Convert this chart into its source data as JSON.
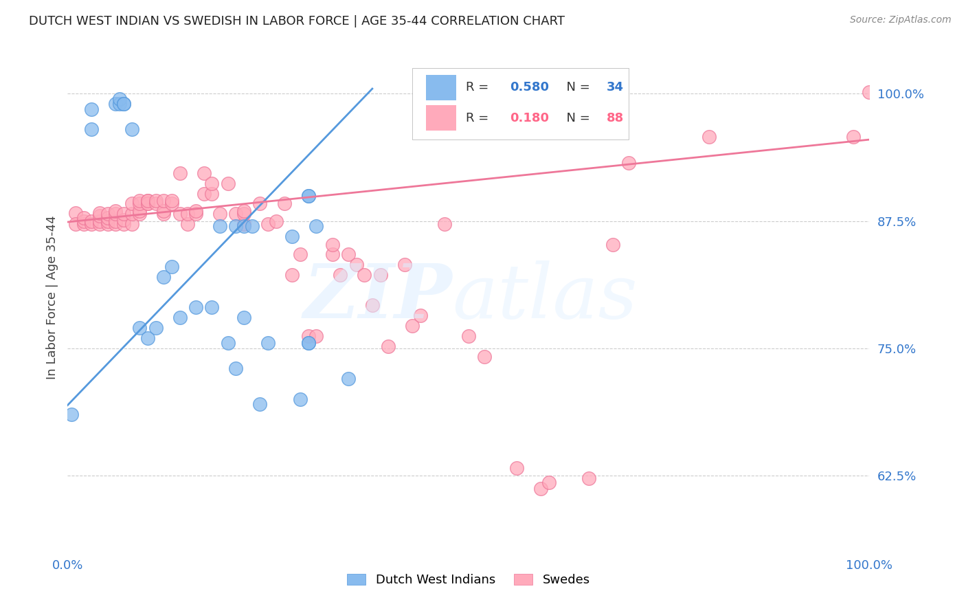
{
  "title": "DUTCH WEST INDIAN VS SWEDISH IN LABOR FORCE | AGE 35-44 CORRELATION CHART",
  "source": "Source: ZipAtlas.com",
  "ylabel": "In Labor Force | Age 35-44",
  "xlim": [
    0.0,
    1.0
  ],
  "ylim": [
    0.55,
    1.05
  ],
  "yticks": [
    0.625,
    0.75,
    0.875,
    1.0
  ],
  "ytick_labels": [
    "62.5%",
    "75.0%",
    "87.5%",
    "100.0%"
  ],
  "legend_R1": "0.580",
  "legend_N1": "34",
  "legend_R2": "0.180",
  "legend_N2": "88",
  "color_blue": "#88BBEE",
  "color_pink": "#FFAABB",
  "color_blue_text": "#3377CC",
  "color_pink_text": "#FF6688",
  "color_blue_line": "#5599DD",
  "color_pink_line": "#EE7799",
  "blue_x": [
    0.005,
    0.03,
    0.03,
    0.06,
    0.065,
    0.065,
    0.07,
    0.07,
    0.08,
    0.09,
    0.1,
    0.11,
    0.12,
    0.13,
    0.14,
    0.16,
    0.18,
    0.19,
    0.21,
    0.21,
    0.22,
    0.24,
    0.28,
    0.3,
    0.3,
    0.31,
    0.35,
    0.2,
    0.22,
    0.23,
    0.25,
    0.29,
    0.3,
    0.3
  ],
  "blue_y": [
    0.685,
    0.965,
    0.985,
    0.99,
    0.99,
    0.995,
    0.99,
    0.99,
    0.965,
    0.77,
    0.76,
    0.77,
    0.82,
    0.83,
    0.78,
    0.79,
    0.79,
    0.87,
    0.87,
    0.73,
    0.78,
    0.695,
    0.86,
    0.755,
    0.755,
    0.87,
    0.72,
    0.755,
    0.87,
    0.87,
    0.755,
    0.7,
    0.9,
    0.9
  ],
  "pink_x": [
    0.01,
    0.01,
    0.02,
    0.02,
    0.02,
    0.03,
    0.03,
    0.04,
    0.04,
    0.04,
    0.04,
    0.05,
    0.05,
    0.05,
    0.05,
    0.06,
    0.06,
    0.06,
    0.06,
    0.07,
    0.07,
    0.07,
    0.08,
    0.08,
    0.08,
    0.09,
    0.09,
    0.09,
    0.09,
    0.1,
    0.1,
    0.1,
    0.1,
    0.11,
    0.11,
    0.12,
    0.12,
    0.12,
    0.13,
    0.13,
    0.14,
    0.14,
    0.15,
    0.15,
    0.16,
    0.16,
    0.17,
    0.17,
    0.18,
    0.18,
    0.19,
    0.2,
    0.21,
    0.22,
    0.22,
    0.22,
    0.24,
    0.25,
    0.26,
    0.27,
    0.28,
    0.29,
    0.3,
    0.31,
    0.33,
    0.33,
    0.34,
    0.35,
    0.36,
    0.37,
    0.38,
    0.39,
    0.4,
    0.42,
    0.43,
    0.44,
    0.47,
    0.5,
    0.52,
    0.56,
    0.59,
    0.6,
    0.65,
    0.68,
    0.7,
    0.8,
    0.98,
    1.0
  ],
  "pink_y": [
    0.883,
    0.872,
    0.872,
    0.875,
    0.878,
    0.872,
    0.875,
    0.872,
    0.875,
    0.88,
    0.883,
    0.872,
    0.875,
    0.878,
    0.882,
    0.872,
    0.875,
    0.882,
    0.885,
    0.872,
    0.876,
    0.882,
    0.872,
    0.882,
    0.892,
    0.882,
    0.885,
    0.892,
    0.895,
    0.892,
    0.895,
    0.892,
    0.895,
    0.892,
    0.895,
    0.882,
    0.885,
    0.895,
    0.892,
    0.895,
    0.882,
    0.922,
    0.872,
    0.882,
    0.882,
    0.885,
    0.902,
    0.922,
    0.902,
    0.912,
    0.882,
    0.912,
    0.882,
    0.872,
    0.882,
    0.885,
    0.892,
    0.872,
    0.875,
    0.892,
    0.822,
    0.842,
    0.762,
    0.762,
    0.842,
    0.852,
    0.822,
    0.842,
    0.832,
    0.822,
    0.792,
    0.822,
    0.752,
    0.832,
    0.772,
    0.782,
    0.872,
    0.762,
    0.742,
    0.632,
    0.612,
    0.618,
    0.622,
    0.852,
    0.932,
    0.958,
    0.958,
    1.002
  ],
  "blue_trend_x": [
    0.0,
    0.38
  ],
  "blue_trend_y": [
    0.694,
    1.005
  ],
  "pink_trend_x": [
    0.0,
    1.0
  ],
  "pink_trend_y": [
    0.874,
    0.955
  ]
}
